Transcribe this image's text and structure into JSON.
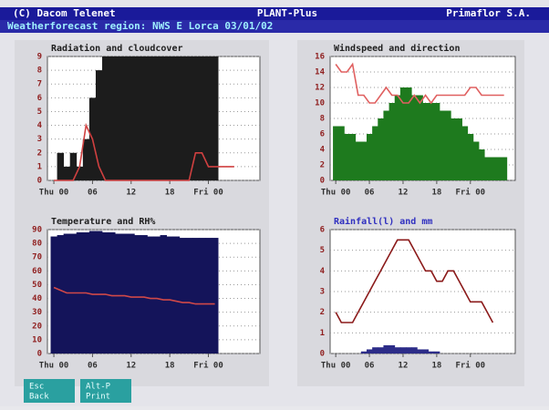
{
  "header": {
    "left": "(C) Dacom Telenet",
    "center": "PLANT-Plus",
    "right": "Primaflor S.A.",
    "subtitle": "Weatherforecast region: NWS E Lorca 03/01/02"
  },
  "chart_data": [
    {
      "type": "combo",
      "title": "Radiation and cloudcover",
      "x": [
        0,
        1,
        2,
        3,
        4,
        5,
        6,
        7,
        8,
        9,
        10,
        11,
        12,
        13,
        14,
        15,
        16,
        17,
        18,
        19,
        20,
        21,
        22,
        23,
        24,
        25,
        26,
        27,
        28,
        29,
        30
      ],
      "xlim": [
        -1,
        32
      ],
      "ylim": [
        0,
        9
      ],
      "yticks": [
        0,
        1,
        2,
        3,
        4,
        5,
        6,
        7,
        8,
        9
      ],
      "xticks": [
        {
          "value": 0,
          "label": "Thu 00"
        },
        {
          "value": 6,
          "label": "06"
        },
        {
          "value": 12,
          "label": "12"
        },
        {
          "value": 18,
          "label": "18"
        },
        {
          "value": 24,
          "label": "Fri 00"
        }
      ],
      "series": [
        {
          "style": "bar",
          "color": "#1c1c1c",
          "values": [
            0,
            2,
            1,
            2,
            1,
            3,
            6,
            8,
            9,
            9,
            9,
            9,
            9,
            9,
            9,
            9,
            9,
            9,
            9,
            9,
            9,
            9,
            9,
            9,
            9,
            9,
            0,
            0,
            0,
            0,
            0
          ]
        },
        {
          "style": "line",
          "color": "#d04040",
          "values": [
            0,
            0,
            0,
            0,
            1,
            4,
            3,
            1,
            0,
            0,
            0,
            0,
            0,
            0,
            0,
            0,
            0,
            0,
            0,
            0,
            0,
            0,
            2,
            2,
            1,
            1,
            1,
            1,
            1,
            null,
            null
          ]
        }
      ]
    },
    {
      "type": "combo",
      "title": "Windspeed and direction",
      "x": [
        0,
        1,
        2,
        3,
        4,
        5,
        6,
        7,
        8,
        9,
        10,
        11,
        12,
        13,
        14,
        15,
        16,
        17,
        18,
        19,
        20,
        21,
        22,
        23,
        24,
        25,
        26,
        27,
        28,
        29,
        30
      ],
      "xlim": [
        -1,
        32
      ],
      "ylim": [
        0,
        16
      ],
      "yticks": [
        0,
        2,
        4,
        6,
        8,
        10,
        12,
        14,
        16
      ],
      "xticks": [
        {
          "value": 0,
          "label": "Thu 00"
        },
        {
          "value": 6,
          "label": "06"
        },
        {
          "value": 12,
          "label": "12"
        },
        {
          "value": 18,
          "label": "18"
        },
        {
          "value": 24,
          "label": "Fri 00"
        }
      ],
      "series": [
        {
          "style": "bar",
          "color": "#1e7a1e",
          "values": [
            7,
            7,
            6,
            6,
            5,
            5,
            6,
            7,
            8,
            9,
            10,
            11,
            12,
            12,
            11,
            11,
            10,
            10,
            10,
            9,
            9,
            8,
            8,
            7,
            6,
            5,
            4,
            3,
            3,
            3,
            3
          ]
        },
        {
          "style": "line",
          "color": "#e06060",
          "values": [
            15,
            14,
            14,
            15,
            11,
            11,
            10,
            10,
            11,
            12,
            11,
            11,
            10,
            10,
            11,
            10,
            11,
            10,
            11,
            11,
            11,
            11,
            11,
            11,
            12,
            12,
            11,
            11,
            11,
            11,
            11
          ]
        }
      ]
    },
    {
      "type": "combo",
      "title": "Temperature and RH%",
      "x": [
        0,
        1,
        2,
        3,
        4,
        5,
        6,
        7,
        8,
        9,
        10,
        11,
        12,
        13,
        14,
        15,
        16,
        17,
        18,
        19,
        20,
        21,
        22,
        23,
        24,
        25,
        26,
        27,
        28,
        29,
        30
      ],
      "xlim": [
        -1,
        32
      ],
      "ylim": [
        0,
        90
      ],
      "yticks": [
        0,
        10,
        20,
        30,
        40,
        50,
        60,
        70,
        80,
        90
      ],
      "xticks": [
        {
          "value": 0,
          "label": "Thu 00"
        },
        {
          "value": 6,
          "label": "06"
        },
        {
          "value": 12,
          "label": "12"
        },
        {
          "value": 18,
          "label": "18"
        },
        {
          "value": 24,
          "label": "Fri 00"
        }
      ],
      "series": [
        {
          "style": "bar",
          "color": "#14145a",
          "values": [
            85,
            86,
            87,
            87,
            88,
            88,
            89,
            89,
            88,
            88,
            87,
            87,
            87,
            86,
            86,
            85,
            85,
            86,
            85,
            85,
            84,
            84,
            84,
            84,
            84,
            84,
            null,
            null,
            null,
            null,
            null
          ]
        },
        {
          "style": "line",
          "color": "#d04848",
          "values": [
            48,
            46,
            44,
            44,
            44,
            44,
            43,
            43,
            43,
            42,
            42,
            42,
            41,
            41,
            41,
            40,
            40,
            39,
            39,
            38,
            37,
            37,
            36,
            36,
            36,
            36,
            null,
            null,
            null,
            null,
            null
          ]
        }
      ]
    },
    {
      "type": "combo",
      "title": "Rainfall(l) and mm",
      "x": [
        0,
        1,
        2,
        3,
        4,
        5,
        6,
        7,
        8,
        9,
        10,
        11,
        12,
        13,
        14,
        15,
        16,
        17,
        18,
        19,
        20,
        21,
        22,
        23,
        24,
        25,
        26,
        27,
        28,
        29,
        30
      ],
      "xlim": [
        -1,
        32
      ],
      "ylim": [
        0,
        6
      ],
      "yticks": [
        0,
        1,
        2,
        3,
        4,
        5,
        6
      ],
      "xticks": [
        {
          "value": 0,
          "label": "Thu 00"
        },
        {
          "value": 6,
          "label": "06"
        },
        {
          "value": 12,
          "label": "12"
        },
        {
          "value": 18,
          "label": "18"
        },
        {
          "value": 24,
          "label": "Fri 00"
        }
      ],
      "series": [
        {
          "style": "bar",
          "color": "#2c2c88",
          "values": [
            0,
            0,
            0,
            0,
            0,
            0.1,
            0.2,
            0.3,
            0.3,
            0.4,
            0.4,
            0.3,
            0.3,
            0.3,
            0.3,
            0.2,
            0.2,
            0.1,
            0.1,
            0,
            0,
            0,
            0,
            0,
            0,
            0,
            0,
            0,
            null,
            null,
            null
          ]
        },
        {
          "style": "line",
          "color": "#8b1a1a",
          "values": [
            2,
            1.5,
            1.5,
            1.5,
            2,
            2.5,
            3,
            3.5,
            4,
            4.5,
            5,
            5.5,
            5.5,
            5.5,
            5,
            4.5,
            4,
            4,
            3.5,
            3.5,
            4,
            4,
            3.5,
            3,
            2.5,
            2.5,
            2.5,
            2,
            1.5,
            null,
            null
          ]
        }
      ]
    }
  ],
  "buttons": [
    {
      "key": "Esc",
      "label": "Back"
    },
    {
      "key": "Alt-P",
      "label": "Print"
    }
  ]
}
